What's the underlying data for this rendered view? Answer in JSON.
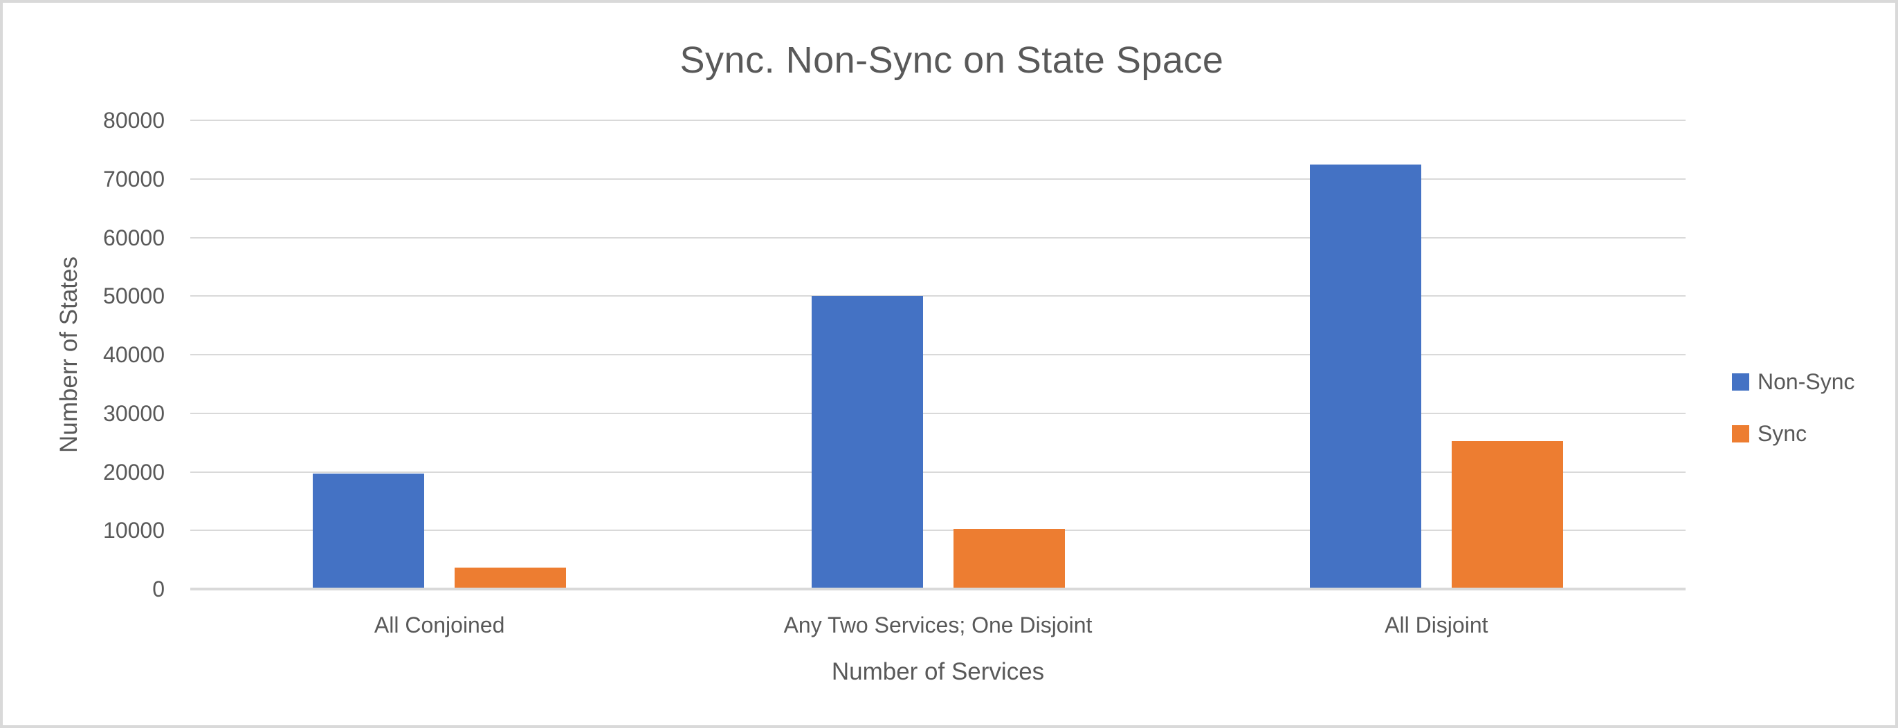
{
  "chart_data": {
    "type": "bar",
    "title": "Sync. Non-Sync on State Space",
    "xlabel": "Number of Services",
    "ylabel": "Numberr of States",
    "categories": [
      "All Conjoined",
      "Any Two Services; One Disjoint",
      "All Disjoint"
    ],
    "series": [
      {
        "name": "Non-Sync",
        "color": "#4472C4",
        "values": [
          19650,
          50000,
          72500
        ]
      },
      {
        "name": "Sync",
        "color": "#ED7D31",
        "values": [
          3700,
          10300,
          25250
        ]
      }
    ],
    "ylim": [
      0,
      80000
    ],
    "yticks": [
      0,
      10000,
      20000,
      30000,
      40000,
      50000,
      60000,
      70000,
      80000
    ],
    "grid": "horizontal",
    "legend_position": "right"
  },
  "colors": {
    "text": "#595959",
    "gridline": "#D9D9D9",
    "axis_line": "#D9D9D9",
    "background": "#FFFFFF",
    "border": "#D9D9D9"
  }
}
